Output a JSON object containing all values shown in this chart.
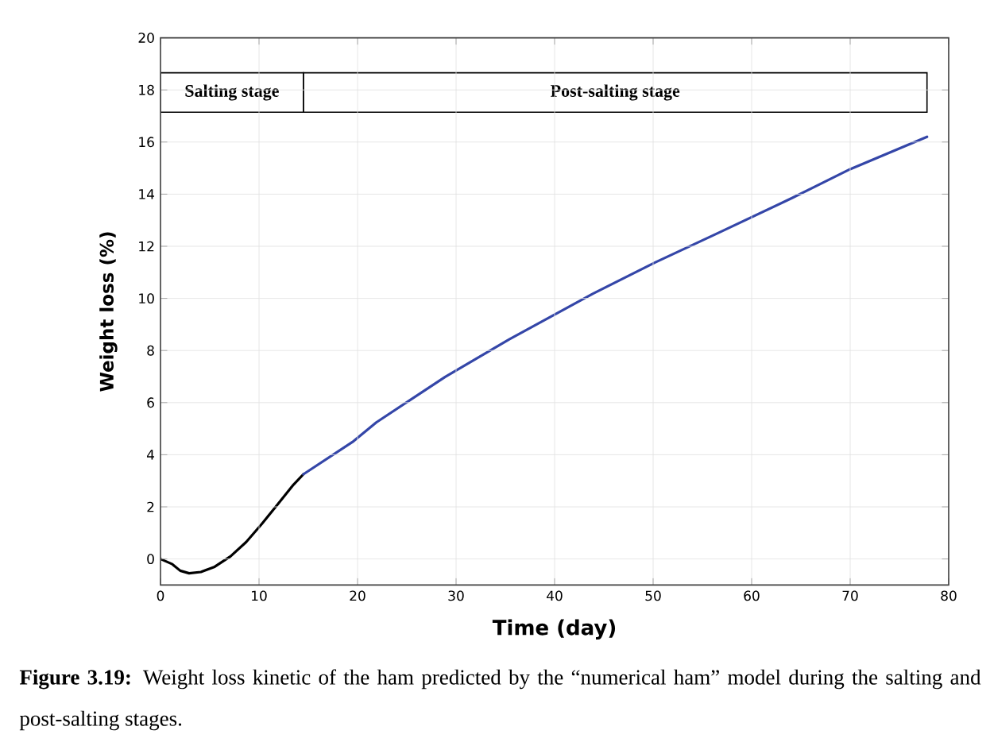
{
  "chart_data": {
    "type": "line",
    "xlabel": "Time (day)",
    "ylabel": "Weight loss (%)",
    "xlim": [
      0,
      80
    ],
    "ylim": [
      -1,
      20
    ],
    "xticks": [
      0,
      10,
      20,
      30,
      40,
      50,
      60,
      70,
      80
    ],
    "yticks": [
      0,
      2,
      4,
      6,
      8,
      10,
      12,
      14,
      16,
      18,
      20
    ],
    "grid": true,
    "marker": "none",
    "line_style": "solid",
    "series": [
      {
        "color": "#000000",
        "x": [
          0,
          1.2,
          2.0,
          2.9,
          4.1,
          5.5,
          7.1,
          8.7,
          10.3,
          11.9,
          13.5,
          14.5
        ],
        "values": [
          0,
          -0.2,
          -0.45,
          -0.55,
          -0.5,
          -0.3,
          0.1,
          0.65,
          1.35,
          2.1,
          2.85,
          3.25
        ]
      },
      {
        "color": "#3446a8",
        "x": [
          14.5,
          19.6,
          21.9,
          28.9,
          35.4,
          43.9,
          50.2,
          56.5,
          64.1,
          70.0,
          77.8
        ],
        "values": [
          3.25,
          4.52,
          5.24,
          6.99,
          8.43,
          10.18,
          11.38,
          12.49,
          13.85,
          14.96,
          16.2
        ]
      }
    ],
    "annotations": [
      "Salting stage",
      "Post-salting stage",
      "**Figure 3.19:** Weight loss kinetic of the ham predicted by the “numerical ham” model during the salting and post-salting stages."
    ]
  }
}
